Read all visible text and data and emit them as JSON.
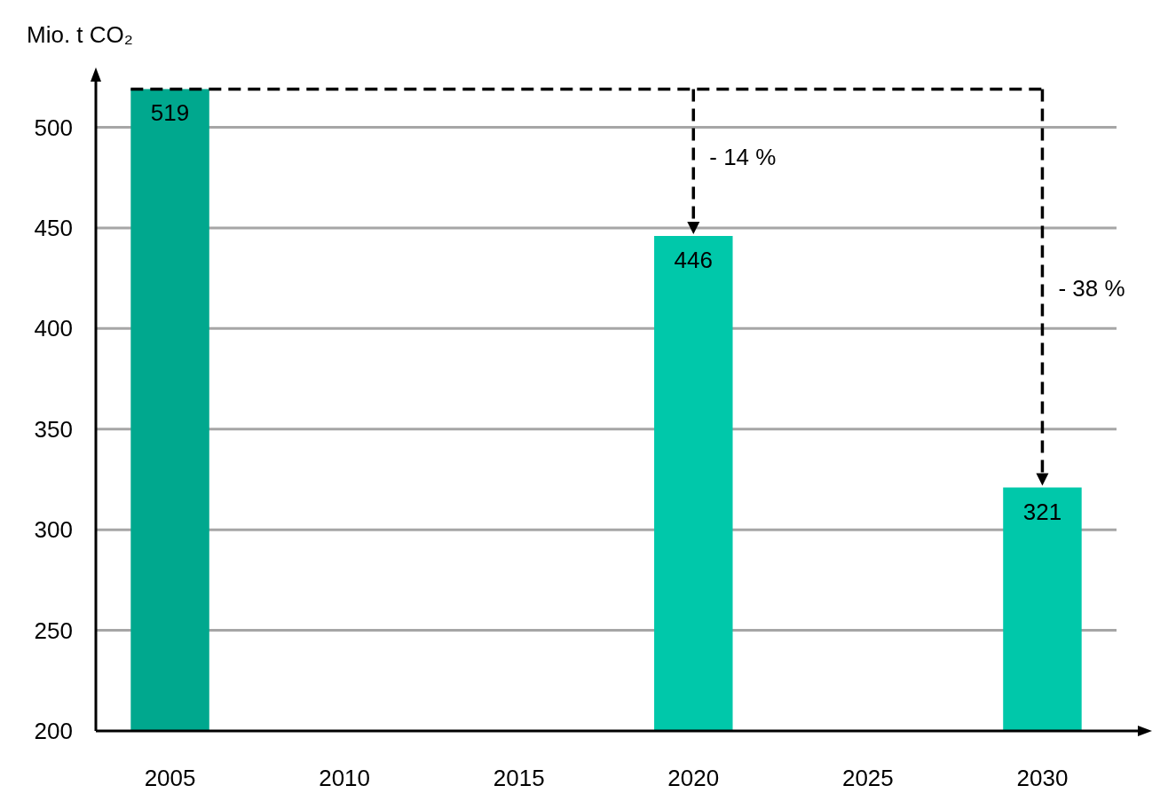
{
  "chart_data": {
    "type": "bar",
    "ylabel": "Mio. t CO₂",
    "categories": [
      "2005",
      "2010",
      "2015",
      "2020",
      "2025",
      "2030"
    ],
    "values": [
      519,
      null,
      null,
      446,
      null,
      321
    ],
    "colors": [
      "#00a88e",
      null,
      null,
      "#00c8aa",
      null,
      "#00c8aa"
    ],
    "ref_lines": [
      {
        "axis": "y",
        "value": 519,
        "color": "#000000",
        "line_style": "dashed"
      }
    ],
    "ylim": [
      200,
      528
    ],
    "yticks": [
      200,
      250,
      300,
      350,
      400,
      450,
      500
    ],
    "grid": "y",
    "data_labels": true,
    "annotations": [
      "- 14 %",
      "- 38 %"
    ]
  }
}
